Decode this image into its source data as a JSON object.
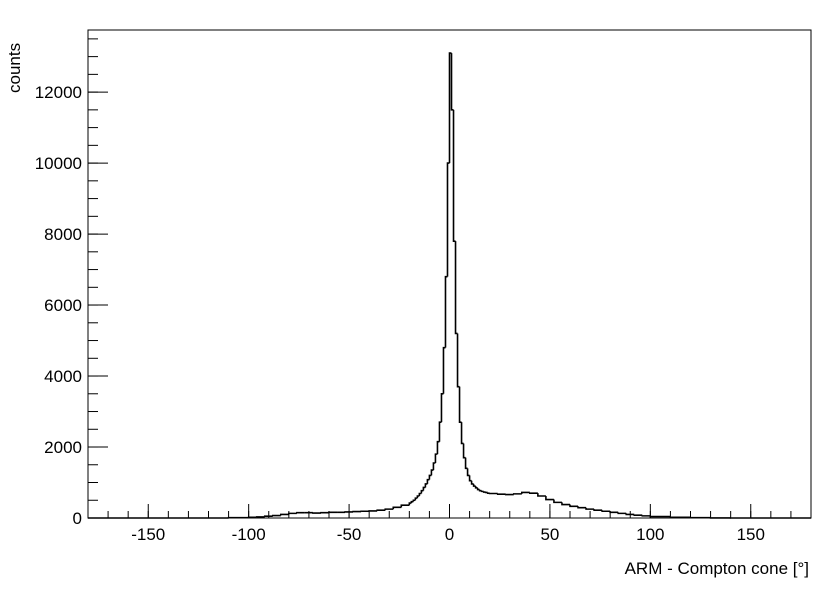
{
  "chart_data": {
    "type": "histogram",
    "x_label": "ARM - Compton cone [°]",
    "y_label": "counts",
    "color": "#000000",
    "xlim": [
      -180,
      180
    ],
    "ylim": [
      0,
      13750
    ],
    "xticks": [
      -150,
      -100,
      -50,
      0,
      50,
      100,
      150
    ],
    "yticks": [
      0,
      2000,
      4000,
      6000,
      8000,
      10000,
      12000
    ],
    "bins": [
      -180,
      -170,
      -160,
      -150,
      -140,
      -130,
      -120,
      -110,
      -100,
      -96,
      -92,
      -88,
      -84,
      -80,
      -76,
      -72,
      -68,
      -64,
      -60,
      -56,
      -52,
      -48,
      -44,
      -40,
      -36,
      -32,
      -28,
      -24,
      -20,
      -19,
      -18,
      -17,
      -16,
      -15,
      -14,
      -13,
      -12,
      -11,
      -10,
      -9,
      -8,
      -7,
      -6,
      -5,
      -4,
      -3,
      -2,
      -1,
      0,
      1,
      2,
      3,
      4,
      5,
      6,
      7,
      8,
      9,
      10,
      11,
      12,
      13,
      14,
      15,
      16,
      17,
      18,
      19,
      20,
      24,
      28,
      32,
      36,
      40,
      44,
      48,
      52,
      56,
      60,
      64,
      68,
      72,
      76,
      80,
      84,
      88,
      92,
      96,
      100,
      110,
      120,
      130,
      140,
      150,
      160,
      170,
      180
    ],
    "counts": [
      0,
      0,
      0,
      0,
      0,
      0,
      0,
      10,
      20,
      30,
      50,
      70,
      100,
      130,
      150,
      150,
      140,
      150,
      160,
      160,
      170,
      180,
      190,
      200,
      220,
      250,
      300,
      360,
      420,
      460,
      500,
      560,
      620,
      690,
      770,
      860,
      960,
      1080,
      1200,
      1350,
      1550,
      1800,
      2150,
      2700,
      3500,
      4800,
      6800,
      10000,
      13100,
      11500,
      7800,
      5200,
      3700,
      2700,
      2100,
      1700,
      1400,
      1200,
      1050,
      960,
      900,
      850,
      800,
      770,
      750,
      730,
      720,
      700,
      690,
      670,
      660,
      680,
      720,
      700,
      620,
      520,
      440,
      380,
      330,
      290,
      250,
      220,
      190,
      160,
      130,
      100,
      80,
      60,
      40,
      20,
      8,
      3,
      0,
      0,
      0,
      0
    ]
  }
}
